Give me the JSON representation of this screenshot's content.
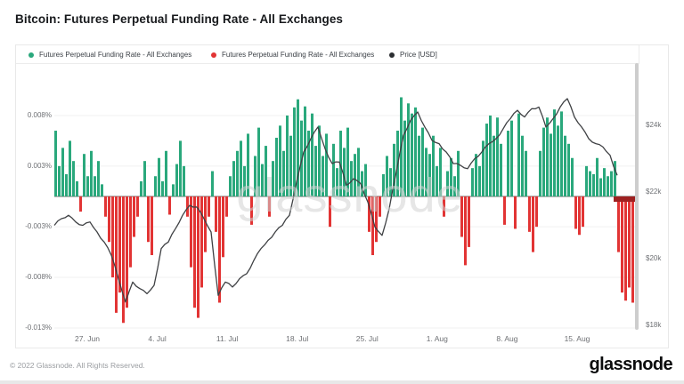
{
  "page": {
    "title": "Bitcoin: Futures Perpetual Funding Rate - All Exchanges"
  },
  "legend": {
    "items": [
      {
        "label": "Futures Perpetual Funding Rate - All Exchanges",
        "color": "#2aa87c"
      },
      {
        "label": "Futures Perpetual Funding Rate - All Exchanges",
        "color": "#e23434"
      },
      {
        "label": "Price [USD]",
        "color": "#2b2e31"
      }
    ]
  },
  "watermark": "glassnode",
  "footer": {
    "copyright": "© 2022 Glassnode. All Rights Reserved.",
    "brand": "glassnode"
  },
  "chart_data": {
    "type": "bar",
    "title": "Bitcoin: Futures Perpetual Funding Rate - All Exchanges",
    "legend_position": "top",
    "grid": "horizontal-faint",
    "x_axis": {
      "tick_labels": [
        "27. Jun",
        "4. Jul",
        "11. Jul",
        "18. Jul",
        "25. Jul",
        "1. Aug",
        "8. Aug",
        "15. Aug"
      ]
    },
    "y_axis_left": {
      "tick_labels": [
        "0.008%",
        "0.003%",
        "-0.003%",
        "-0.008%",
        "-0.013%"
      ],
      "tick_values": [
        0.008,
        0.003,
        -0.003,
        -0.008,
        -0.013
      ],
      "range_pct": [
        -0.0135,
        0.0105
      ]
    },
    "y_axis_right": {
      "tick_labels": [
        "$24k",
        "$22k",
        "$20k",
        "$18k"
      ],
      "tick_values_usd_k": [
        24,
        22,
        20,
        18
      ],
      "range_usd_k": [
        17.5,
        25.5
      ]
    },
    "series": [
      {
        "name": "Futures Perpetual Funding Rate - All Exchanges",
        "type": "bar",
        "unit": "percent",
        "positive_color": "#2aa87c",
        "negative_color": "#e23434",
        "values": [
          0.0065,
          0.003,
          0.0048,
          0.0022,
          0.0055,
          0.0035,
          0.0015,
          -0.0015,
          0.0042,
          0.002,
          0.0045,
          0.002,
          0.0035,
          0.0012,
          -0.002,
          -0.0045,
          -0.008,
          -0.0115,
          -0.0095,
          -0.0125,
          -0.011,
          -0.007,
          -0.004,
          -0.002,
          0.0015,
          0.0035,
          -0.0045,
          -0.0058,
          0.002,
          0.0038,
          0.0015,
          0.0045,
          -0.0018,
          0.0012,
          0.0032,
          0.0055,
          0.003,
          -0.002,
          -0.007,
          -0.011,
          -0.012,
          -0.009,
          -0.0055,
          -0.002,
          0.0025,
          -0.0035,
          -0.0105,
          -0.006,
          -0.002,
          0.002,
          0.0035,
          0.0045,
          0.0055,
          0.003,
          0.0062,
          -0.0028,
          0.004,
          0.0068,
          0.0032,
          0.005,
          -0.002,
          0.0035,
          0.0058,
          0.007,
          0.0045,
          0.008,
          0.006,
          0.0088,
          0.0096,
          0.0075,
          0.0089,
          0.0065,
          0.0082,
          0.005,
          0.007,
          0.004,
          0.0062,
          -0.003,
          0.0052,
          0.0028,
          0.0065,
          0.0048,
          0.0068,
          0.0035,
          0.0042,
          0.0048,
          0.0025,
          0.0032,
          -0.0035,
          -0.0058,
          -0.0045,
          -0.002,
          0.0022,
          0.004,
          0.0028,
          0.0052,
          0.0065,
          0.0098,
          0.0075,
          0.0092,
          0.0082,
          0.0088,
          0.006,
          0.0068,
          0.0048,
          0.0042,
          0.006,
          0.003,
          0.0048,
          -0.002,
          0.0025,
          0.0038,
          0.002,
          0.0045,
          -0.004,
          -0.0068,
          -0.005,
          0.0028,
          0.0042,
          0.003,
          0.0055,
          0.0072,
          0.008,
          0.006,
          0.0078,
          0.0052,
          -0.0028,
          0.0065,
          0.0075,
          -0.0032,
          0.0082,
          0.006,
          0.0045,
          -0.0035,
          -0.0055,
          -0.003,
          0.0045,
          0.0068,
          0.0078,
          0.0062,
          0.0086,
          0.007,
          0.0084,
          0.006,
          0.0052,
          0.0038,
          -0.0032,
          -0.0038,
          -0.003,
          0.003,
          0.0025,
          0.0022,
          0.0038,
          0.0018,
          0.0028,
          0.002,
          0.0025,
          0.0035,
          -0.0055,
          -0.0095,
          -0.0103,
          -0.009,
          -0.0105,
          -0.008
        ]
      },
      {
        "name": "Price [USD]",
        "type": "line",
        "unit": "USD_thousands",
        "color": "#3f4144",
        "values": [
          21.0,
          21.2,
          21.3,
          21.1,
          21.0,
          21.1,
          20.8,
          20.5,
          20.1,
          19.4,
          18.7,
          19.3,
          19.1,
          18.95,
          19.2,
          20.3,
          20.5,
          20.9,
          21.3,
          21.6,
          21.55,
          21.2,
          20.8,
          18.9,
          19.3,
          19.15,
          19.4,
          19.55,
          19.95,
          20.3,
          20.55,
          20.8,
          21.0,
          21.3,
          22.3,
          23.2,
          23.6,
          23.95,
          23.3,
          22.85,
          22.9,
          22.2,
          22.4,
          22.25,
          21.7,
          20.95,
          20.7,
          21.5,
          22.6,
          23.7,
          24.15,
          24.4,
          23.95,
          23.55,
          23.45,
          23.2,
          22.85,
          22.8,
          22.7,
          23.0,
          23.2,
          23.45,
          23.6,
          23.9,
          24.2,
          24.45,
          24.25,
          24.5,
          24.55,
          23.95,
          24.2,
          24.55,
          24.8,
          24.25,
          23.95,
          23.6,
          23.45,
          23.35,
          23.1,
          22.5
        ]
      }
    ]
  }
}
